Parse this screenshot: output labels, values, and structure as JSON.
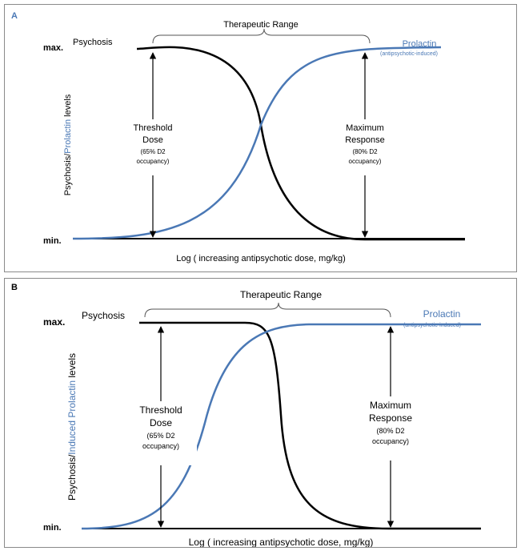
{
  "colors": {
    "psychosis": "#000000",
    "prolactin": "#4a78b5",
    "arrow": "#000000",
    "brace": "#555555",
    "label_a": "#4a78b5"
  },
  "panels": [
    {
      "id": "A",
      "label": "A",
      "title": "Therapeutic Range",
      "y_max": "max.",
      "y_min": "min.",
      "ylabel_part1": "Psychosis/",
      "ylabel_part2": "Prolactin",
      "ylabel_part3": " levels",
      "xlabel": "Log ( increasing antipsychotic dose, mg/kg)",
      "psychosis_label": "Psychosis",
      "prolactin_label": "Prolactin",
      "prolactin_sub": "(antipsychotic-induced)",
      "threshold": [
        "Threshold",
        "Dose",
        "(65% D2",
        "occupancy)"
      ],
      "maximum": [
        "Maximum",
        "Response",
        "(80% D2",
        "occupancy)"
      ]
    },
    {
      "id": "B",
      "label": "B",
      "title": "Therapeutic Range",
      "y_max": "max.",
      "y_min": "min.",
      "ylabel_part1": "Psychosis/",
      "ylabel_part2": "Induced Prolactin",
      "ylabel_part3": " levels",
      "xlabel": "Log ( increasing antipsychotic dose, mg/kg)",
      "psychosis_label": "Psychosis",
      "prolactin_label": "Prolactin",
      "prolactin_sub": "(antipsychotic-induced)",
      "threshold": [
        "Threshold",
        "Dose",
        "(65% D2",
        "occupancy)"
      ],
      "maximum": [
        "Maximum",
        "Response",
        "(80% D2",
        "occupancy)"
      ]
    }
  ]
}
